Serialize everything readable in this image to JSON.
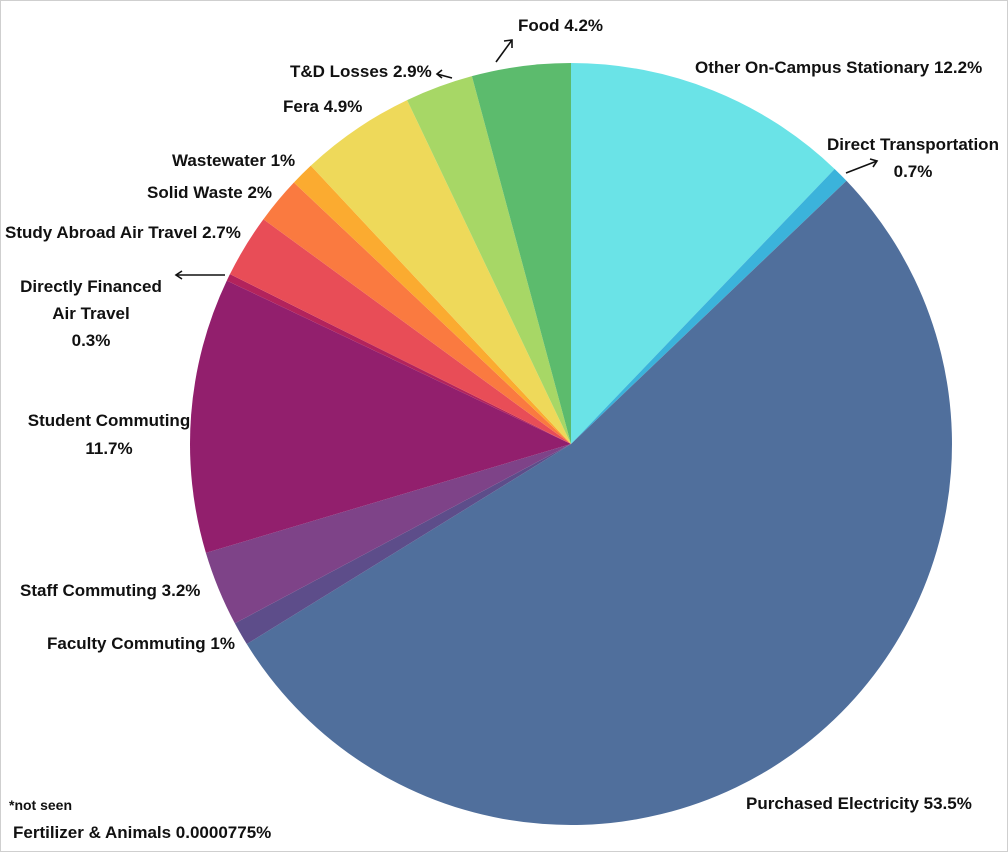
{
  "chart_data": {
    "type": "pie",
    "title": "",
    "slices": [
      {
        "label": "Other On-Campus Stationary 12.2%",
        "value": 12.2,
        "color": "#6ae3e7"
      },
      {
        "label": "Direct Transportation 0.7%",
        "value": 0.7,
        "color": "#3bb3db"
      },
      {
        "label": "Purchased Electricity 53.5%",
        "value": 53.5,
        "color": "#506f9c"
      },
      {
        "label": "Faculty Commuting 1%",
        "value": 1.0,
        "color": "#5d4d8a"
      },
      {
        "label": "Staff Commuting 3.2%",
        "value": 3.2,
        "color": "#7e4388"
      },
      {
        "label": "Student Commuting 11.7%",
        "value": 11.7,
        "color": "#921f6d"
      },
      {
        "label": "Directly Financed Air Travel 0.3%",
        "value": 0.3,
        "color": "#b3235c"
      },
      {
        "label": "Study Abroad Air Travel 2.7%",
        "value": 2.7,
        "color": "#e84d57"
      },
      {
        "label": "Solid Waste 2%",
        "value": 2.0,
        "color": "#fa7a40"
      },
      {
        "label": "Wastewater 1%",
        "value": 1.0,
        "color": "#fbab30"
      },
      {
        "label": "Fera 4.9%",
        "value": 4.9,
        "color": "#eed95a"
      },
      {
        "label": "T&D Losses 2.9%",
        "value": 2.9,
        "color": "#a7d766"
      },
      {
        "label": "Food 4.2%",
        "value": 4.2,
        "color": "#5cbb6d"
      }
    ],
    "labels": {
      "food": "Food 4.2%",
      "td_losses": "T&D Losses 2.9%",
      "fera": "Fera 4.9%",
      "wastewater": "Wastewater 1%",
      "solid_waste": "Solid Waste 2%",
      "study_abroad": "Study Abroad Air Travel 2.7%",
      "directly_financed_l1": "Directly Financed",
      "directly_financed_l2": "Air Travel",
      "directly_financed_l3": "0.3%",
      "student_commuting_l1": "Student Commuting",
      "student_commuting_l2": "11.7%",
      "staff_commuting": "Staff Commuting 3.2%",
      "faculty_commuting": "Faculty Commuting 1%",
      "other_stationary": "Other On-Campus Stationary 12.2%",
      "direct_transport_l1": "Direct Transportation",
      "direct_transport_l2": "0.7%",
      "purchased_electricity": "Purchased Electricity 53.5%"
    },
    "footnote": {
      "note": "*not seen",
      "text": "Fertilizer & Animals 0.0000775%"
    }
  }
}
